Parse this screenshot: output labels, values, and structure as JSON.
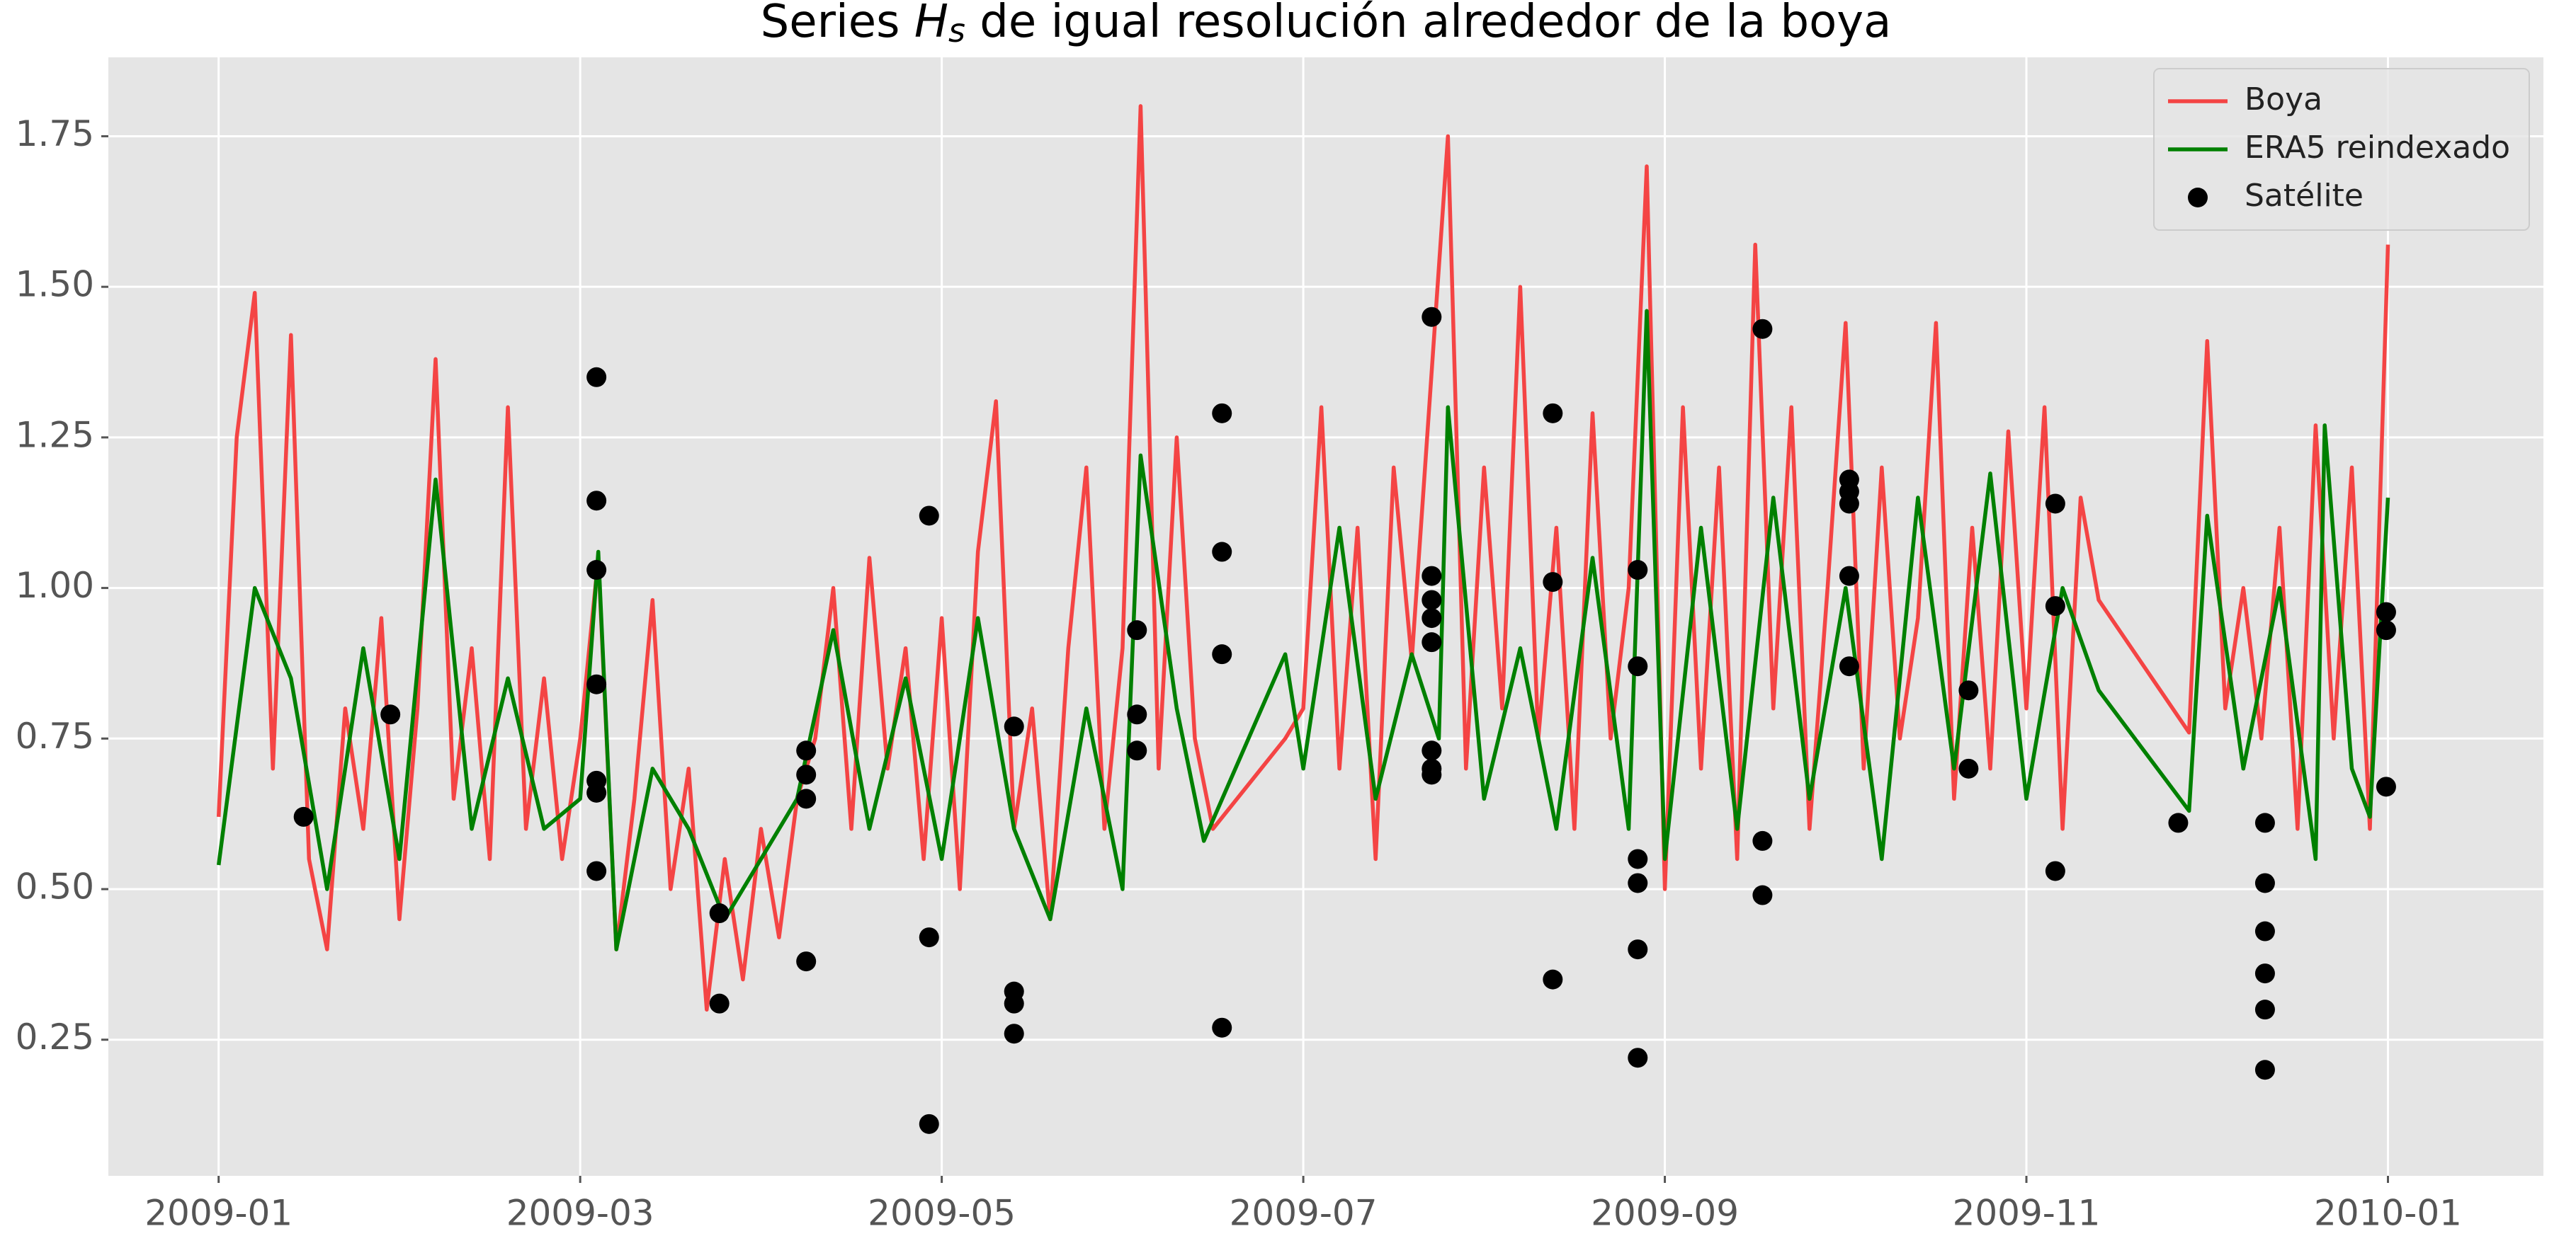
{
  "chart_data": {
    "type": "line",
    "title": {
      "before": "Series ",
      "symbol": "H",
      "subscript": "s",
      "after": " de igual resolución alrededor de la boya"
    },
    "xlim": [
      -0.61,
      12.86
    ],
    "xticks": [
      {
        "value": 0,
        "label": "2009-01"
      },
      {
        "value": 2,
        "label": "2009-03"
      },
      {
        "value": 4,
        "label": "2009-05"
      },
      {
        "value": 6,
        "label": "2009-07"
      },
      {
        "value": 8,
        "label": "2009-09"
      },
      {
        "value": 10,
        "label": "2009-11"
      },
      {
        "value": 12,
        "label": "2010-01"
      }
    ],
    "ylim": [
      0.024,
      1.881
    ],
    "yticks": [
      0.25,
      {
        "value": 0.5,
        "label": "0.50"
      },
      {
        "value": 0.75,
        "label": "0.75"
      },
      {
        "value": 1,
        "label": "1.00"
      },
      {
        "value": 1.25,
        "label": "1.25"
      },
      {
        "value": 1.5,
        "label": "1.50"
      },
      1.75
    ],
    "grid": true,
    "legend": "upper right",
    "series": [
      {
        "name": "Boya",
        "type": "line",
        "color": "#f44444",
        "x": [
          0,
          0.1,
          0.2,
          0.3,
          0.4,
          0.5,
          0.6,
          0.7,
          0.8,
          0.9,
          1,
          1.1,
          1.2,
          1.3,
          1.4,
          1.5,
          1.6,
          1.7,
          1.8,
          1.9,
          2,
          2.1,
          2.2,
          2.3,
          2.4,
          2.5,
          2.6,
          2.7,
          2.8,
          2.9,
          3,
          3.1,
          3.2,
          3.3,
          3.4,
          3.5,
          3.6,
          3.7,
          3.8,
          3.9,
          4,
          4.1,
          4.2,
          4.3,
          4.4,
          4.5,
          4.6,
          4.7,
          4.8,
          4.9,
          5,
          5.1,
          5.2,
          5.3,
          5.4,
          5.5,
          5.9,
          6,
          6.1,
          6.2,
          6.3,
          6.4,
          6.5,
          6.6,
          6.8,
          6.9,
          7,
          7.1,
          7.2,
          7.3,
          7.4,
          7.5,
          7.6,
          7.7,
          7.8,
          7.9,
          8,
          8.1,
          8.2,
          8.3,
          8.4,
          8.5,
          8.6,
          8.7,
          8.8,
          8.9,
          9,
          9.1,
          9.2,
          9.3,
          9.4,
          9.5,
          9.6,
          9.7,
          9.8,
          9.9,
          10,
          10.1,
          10.2,
          10.3,
          10.4,
          10.9,
          11,
          11.1,
          11.2,
          11.3,
          11.4,
          11.5,
          11.6,
          11.7,
          11.8,
          11.9,
          12
        ],
        "values": [
          0.62,
          1.25,
          1.49,
          0.7,
          1.42,
          0.55,
          0.4,
          0.8,
          0.6,
          0.95,
          0.45,
          0.8,
          1.38,
          0.65,
          0.9,
          0.55,
          1.3,
          0.6,
          0.85,
          0.55,
          0.75,
          1.05,
          0.4,
          0.65,
          0.98,
          0.5,
          0.7,
          0.3,
          0.55,
          0.35,
          0.6,
          0.42,
          0.65,
          0.75,
          1.0,
          0.6,
          1.05,
          0.7,
          0.9,
          0.55,
          0.95,
          0.5,
          1.06,
          1.31,
          0.6,
          0.8,
          0.45,
          0.9,
          1.2,
          0.6,
          0.9,
          1.8,
          0.7,
          1.25,
          0.75,
          0.6,
          0.75,
          0.8,
          1.3,
          0.7,
          1.1,
          0.55,
          1.2,
          0.88,
          1.75,
          0.7,
          1.2,
          0.8,
          1.5,
          0.75,
          1.1,
          0.6,
          1.29,
          0.75,
          1.0,
          1.7,
          0.5,
          1.3,
          0.7,
          1.2,
          0.55,
          1.57,
          0.8,
          1.3,
          0.6,
          1.0,
          1.44,
          0.7,
          1.2,
          0.75,
          0.95,
          1.44,
          0.65,
          1.1,
          0.7,
          1.26,
          0.8,
          1.3,
          0.6,
          1.15,
          0.98,
          0.76,
          1.41,
          0.8,
          1.0,
          0.75,
          1.1,
          0.6,
          1.27,
          0.75,
          1.2,
          0.6,
          1.57
        ]
      },
      {
        "name": "ERA5 reindexado",
        "type": "line",
        "color": "#008000",
        "x": [
          0,
          0.2,
          0.4,
          0.6,
          0.8,
          1,
          1.2,
          1.4,
          1.6,
          1.8,
          2,
          2.1,
          2.2,
          2.4,
          2.6,
          2.8,
          3,
          3.2,
          3.4,
          3.6,
          3.8,
          4,
          4.2,
          4.4,
          4.6,
          4.8,
          5,
          5.1,
          5.3,
          5.45,
          5.9,
          6,
          6.2,
          6.4,
          6.6,
          6.75,
          6.8,
          7,
          7.2,
          7.4,
          7.6,
          7.8,
          7.9,
          8,
          8.2,
          8.4,
          8.6,
          8.8,
          9,
          9.2,
          9.4,
          9.6,
          9.8,
          10,
          10.2,
          10.4,
          10.9,
          11,
          11.2,
          11.4,
          11.6,
          11.65,
          11.8,
          11.9,
          12
        ],
        "values": [
          0.54,
          1.0,
          0.85,
          0.5,
          0.9,
          0.55,
          1.18,
          0.6,
          0.85,
          0.6,
          0.65,
          1.06,
          0.4,
          0.7,
          0.6,
          0.45,
          0.55,
          0.65,
          0.93,
          0.6,
          0.85,
          0.55,
          0.95,
          0.6,
          0.45,
          0.8,
          0.5,
          1.22,
          0.8,
          0.58,
          0.89,
          0.7,
          1.1,
          0.65,
          0.89,
          0.75,
          1.3,
          0.65,
          0.9,
          0.6,
          1.05,
          0.6,
          1.46,
          0.55,
          1.1,
          0.6,
          1.15,
          0.65,
          1.0,
          0.55,
          1.15,
          0.7,
          1.19,
          0.65,
          1.0,
          0.83,
          0.63,
          1.12,
          0.7,
          1.0,
          0.55,
          1.27,
          0.7,
          0.62,
          1.15
        ]
      },
      {
        "name": "Satélite",
        "type": "scatter",
        "color": "#000000",
        "x": [
          0.47,
          0.95,
          2.09,
          2.09,
          2.09,
          2.09,
          2.09,
          2.09,
          2.09,
          2.77,
          2.77,
          3.25,
          3.25,
          3.25,
          3.25,
          3.93,
          3.93,
          3.93,
          4.4,
          4.4,
          4.4,
          4.4,
          5.08,
          5.08,
          5.08,
          5.55,
          5.55,
          5.55,
          5.55,
          6.71,
          6.71,
          6.71,
          6.71,
          6.71,
          6.71,
          6.71,
          6.71,
          7.38,
          7.38,
          7.38,
          7.85,
          7.85,
          7.85,
          7.85,
          7.85,
          7.85,
          8.54,
          8.54,
          8.54,
          9.02,
          9.02,
          9.02,
          9.02,
          9.02,
          9.68,
          9.68,
          10.16,
          10.16,
          10.16,
          10.84,
          11.32,
          11.32,
          11.32,
          11.32,
          11.32,
          11.32,
          11.99,
          11.99,
          11.99
        ],
        "values": [
          0.62,
          0.79,
          1.35,
          1.145,
          1.03,
          0.84,
          0.68,
          0.66,
          0.53,
          0.46,
          0.31,
          0.73,
          0.69,
          0.65,
          0.38,
          1.12,
          0.42,
          0.11,
          0.77,
          0.33,
          0.31,
          0.26,
          0.93,
          0.79,
          0.73,
          1.29,
          1.06,
          0.89,
          0.27,
          1.45,
          1.02,
          0.98,
          0.95,
          0.91,
          0.73,
          0.7,
          0.69,
          1.29,
          1.01,
          0.35,
          1.03,
          0.87,
          0.55,
          0.51,
          0.4,
          0.22,
          1.43,
          0.58,
          0.49,
          1.18,
          1.16,
          1.14,
          1.02,
          0.87,
          0.83,
          0.7,
          1.14,
          0.97,
          0.53,
          0.61,
          0.61,
          0.51,
          0.43,
          0.36,
          0.3,
          0.2,
          0.96,
          0.93,
          0.67
        ]
      }
    ]
  }
}
